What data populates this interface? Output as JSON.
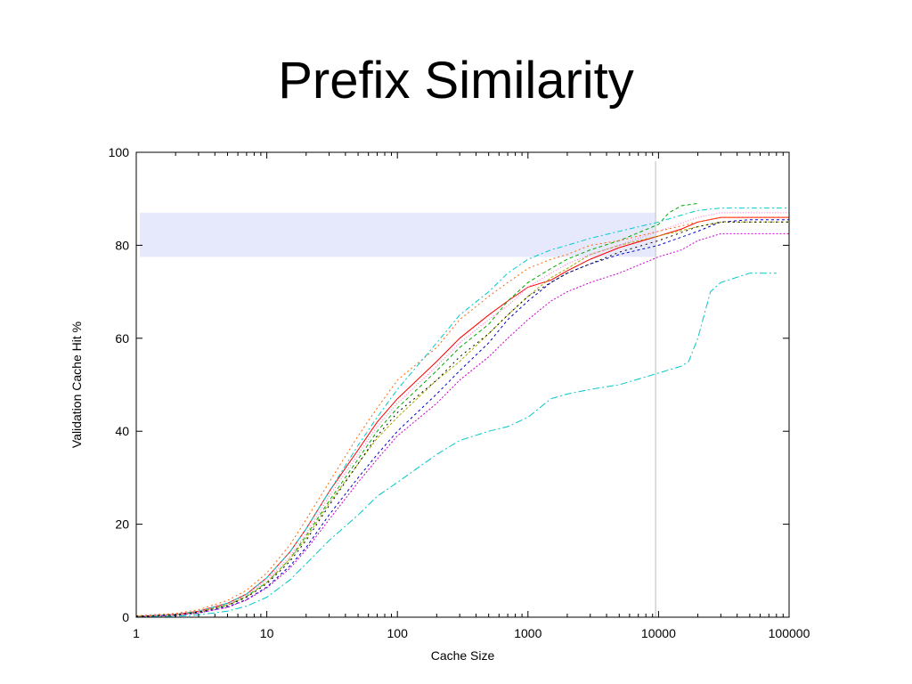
{
  "slide": {
    "title": "Prefix Similarity"
  },
  "chart_data": {
    "type": "line",
    "xlabel": "Cache Size",
    "ylabel": "Validation Cache Hit %",
    "xscale": "log",
    "xlim": [
      1,
      100000
    ],
    "ylim": [
      0,
      100
    ],
    "x_ticks": [
      {
        "value": 1,
        "label": "1"
      },
      {
        "value": 10,
        "label": "10"
      },
      {
        "value": 100,
        "label": "100"
      },
      {
        "value": 1000,
        "label": "1000"
      },
      {
        "value": 10000,
        "label": "10000"
      },
      {
        "value": 100000,
        "label": "100000"
      }
    ],
    "y_ticks": [
      {
        "value": 0,
        "label": "0"
      },
      {
        "value": 20,
        "label": "20"
      },
      {
        "value": 40,
        "label": "40"
      },
      {
        "value": 60,
        "label": "60"
      },
      {
        "value": 80,
        "label": "80"
      },
      {
        "value": 100,
        "label": "100"
      }
    ],
    "grid": false,
    "legend": "none",
    "annotations": {
      "shaded_band": {
        "y_range": [
          77.5,
          87
        ],
        "x_range": [
          1,
          9500
        ],
        "color": "#e6e8fb"
      },
      "vertical_line": {
        "x": 9500,
        "color": "#c8c8c8"
      }
    },
    "series": [
      {
        "color": "#ff0000",
        "dash": "solid",
        "x": [
          1,
          2,
          3,
          5,
          7,
          10,
          15,
          20,
          30,
          50,
          70,
          100,
          200,
          300,
          500,
          700,
          1000,
          1500,
          2000,
          3000,
          5000,
          10000,
          15000,
          20000,
          30000,
          50000,
          100000
        ],
        "y": [
          0.2,
          0.6,
          1.3,
          3,
          5,
          8.5,
          14,
          19,
          27,
          36,
          42,
          47,
          55,
          60,
          65,
          68,
          71,
          72.5,
          74.5,
          77,
          79.5,
          82,
          83.5,
          85,
          86,
          86,
          86
        ]
      },
      {
        "color": "#00aa00",
        "dash": "4,3",
        "x": [
          1,
          2,
          3,
          5,
          7,
          10,
          15,
          20,
          30,
          50,
          70,
          100,
          200,
          300,
          500,
          700,
          1000,
          1500,
          2000,
          3000,
          5000,
          10000,
          12000,
          15000,
          20000
        ],
        "y": [
          0.2,
          0.5,
          1.1,
          2.6,
          4.5,
          7.5,
          12.5,
          17.5,
          25,
          34,
          40,
          45,
          53,
          58,
          63,
          68,
          72,
          75,
          77,
          79,
          81,
          84.5,
          87,
          88.5,
          89
        ]
      },
      {
        "color": "#0000cc",
        "dash": "3,3",
        "x": [
          1,
          2,
          3,
          5,
          7,
          10,
          15,
          20,
          30,
          50,
          70,
          100,
          200,
          300,
          500,
          700,
          1000,
          1500,
          2000,
          3000,
          5000,
          10000,
          20000,
          30000,
          50000,
          100000
        ],
        "y": [
          0.1,
          0.4,
          0.9,
          2.2,
          3.8,
          6.5,
          11,
          15,
          22,
          30,
          35,
          40,
          48,
          53,
          59,
          64,
          68,
          72,
          74,
          76,
          78,
          80,
          83,
          85,
          85.5,
          85.5
        ]
      },
      {
        "color": "#cc00cc",
        "dash": "2,2",
        "x": [
          1,
          2,
          3,
          5,
          7,
          10,
          15,
          20,
          30,
          50,
          70,
          100,
          200,
          300,
          500,
          700,
          1000,
          1500,
          2000,
          3000,
          5000,
          10000,
          15000,
          20000,
          30000,
          50000,
          100000
        ],
        "y": [
          0.1,
          0.4,
          0.9,
          2.1,
          3.7,
          6.3,
          10.5,
          14.5,
          21,
          29,
          34,
          39,
          46,
          51,
          56,
          60,
          64,
          68,
          70,
          72,
          74,
          77.5,
          79,
          81,
          82.5,
          82.5,
          82.5
        ]
      },
      {
        "color": "#00c8c8",
        "dash": "8,3,2,3",
        "x": [
          1,
          2,
          3,
          5,
          7,
          10,
          15,
          20,
          30,
          50,
          70,
          100,
          200,
          300,
          500,
          700,
          1000,
          1500,
          2000,
          3000,
          5000,
          10000,
          15000,
          17000,
          20000,
          25000,
          30000,
          50000,
          80000
        ],
        "y": [
          0,
          0.2,
          0.5,
          1.3,
          2.4,
          4.3,
          8,
          11.5,
          16.5,
          22,
          26,
          29,
          35,
          38,
          40,
          41,
          43,
          47,
          48,
          49,
          50,
          52.5,
          54,
          55,
          60,
          70,
          72,
          74,
          74
        ]
      },
      {
        "color": "#ff6600",
        "dash": "2,3",
        "x": [
          1,
          2,
          3,
          5,
          7,
          10,
          15,
          20,
          30,
          50,
          70,
          100,
          200,
          300,
          500,
          700,
          1000,
          1500,
          2000,
          3000,
          5000,
          10000,
          20000,
          30000,
          50000,
          100000
        ],
        "y": [
          0.3,
          0.8,
          1.6,
          3.6,
          5.8,
          9.5,
          15.5,
          21,
          29,
          39,
          45,
          51,
          58,
          64,
          69,
          72,
          75,
          77,
          78,
          80,
          81,
          83,
          85,
          86,
          86,
          86
        ]
      },
      {
        "color": "#00cccc",
        "dash": "6,3,2,3",
        "x": [
          1,
          2,
          3,
          5,
          7,
          10,
          15,
          20,
          30,
          50,
          70,
          100,
          200,
          300,
          500,
          700,
          1000,
          1500,
          2000,
          3000,
          5000,
          10000,
          15000,
          20000,
          30000,
          50000,
          100000
        ],
        "y": [
          0.2,
          0.6,
          1.3,
          3,
          5,
          8.5,
          14,
          19,
          27,
          37,
          43,
          49,
          59,
          65,
          70,
          74,
          77,
          79,
          80,
          81.5,
          83,
          85,
          86.5,
          87.5,
          88,
          88,
          88
        ]
      },
      {
        "color": "#aaaa00",
        "dash": "3,2",
        "x": [
          1,
          2,
          3,
          5,
          7,
          10,
          15,
          20,
          30,
          50,
          70,
          100,
          200,
          300,
          500,
          700,
          1000,
          1500,
          2000,
          3000,
          5000,
          10000,
          20000,
          30000,
          50000,
          100000
        ],
        "y": [
          0.2,
          0.5,
          1.1,
          2.6,
          4.4,
          7.5,
          12.5,
          17,
          24.5,
          33,
          38.5,
          43,
          51,
          55,
          61,
          65,
          69,
          73,
          75,
          78,
          80,
          82,
          84,
          85,
          85,
          85
        ]
      },
      {
        "color": "#ff66cc",
        "dash": "1,2",
        "x": [
          1,
          2,
          3,
          5,
          7,
          10,
          15,
          20,
          30,
          50,
          70,
          100,
          200,
          300,
          500,
          700,
          1000,
          1500,
          2000,
          3000,
          5000,
          10000,
          20000,
          30000,
          50000,
          100000
        ],
        "y": [
          0.2,
          0.6,
          1.2,
          2.8,
          4.7,
          8,
          13,
          18,
          26,
          35,
          41,
          46,
          54,
          59,
          64,
          67,
          71,
          74,
          76,
          78,
          80,
          83,
          86,
          87,
          87,
          87
        ]
      },
      {
        "color": "#000000",
        "dash": "2,4",
        "x": [
          1,
          2,
          3,
          5,
          7,
          10,
          15,
          20,
          30,
          50,
          70,
          100,
          200,
          300,
          500,
          700,
          1000,
          1500,
          2000,
          3000,
          5000,
          10000,
          20000,
          30000,
          50000,
          100000
        ],
        "y": [
          0.2,
          0.5,
          1.1,
          2.5,
          4.3,
          7.2,
          12,
          16.5,
          24,
          33,
          39,
          44,
          51,
          56,
          61,
          65,
          69,
          72,
          74,
          76,
          78.5,
          81,
          84,
          85,
          85,
          85
        ]
      }
    ]
  }
}
